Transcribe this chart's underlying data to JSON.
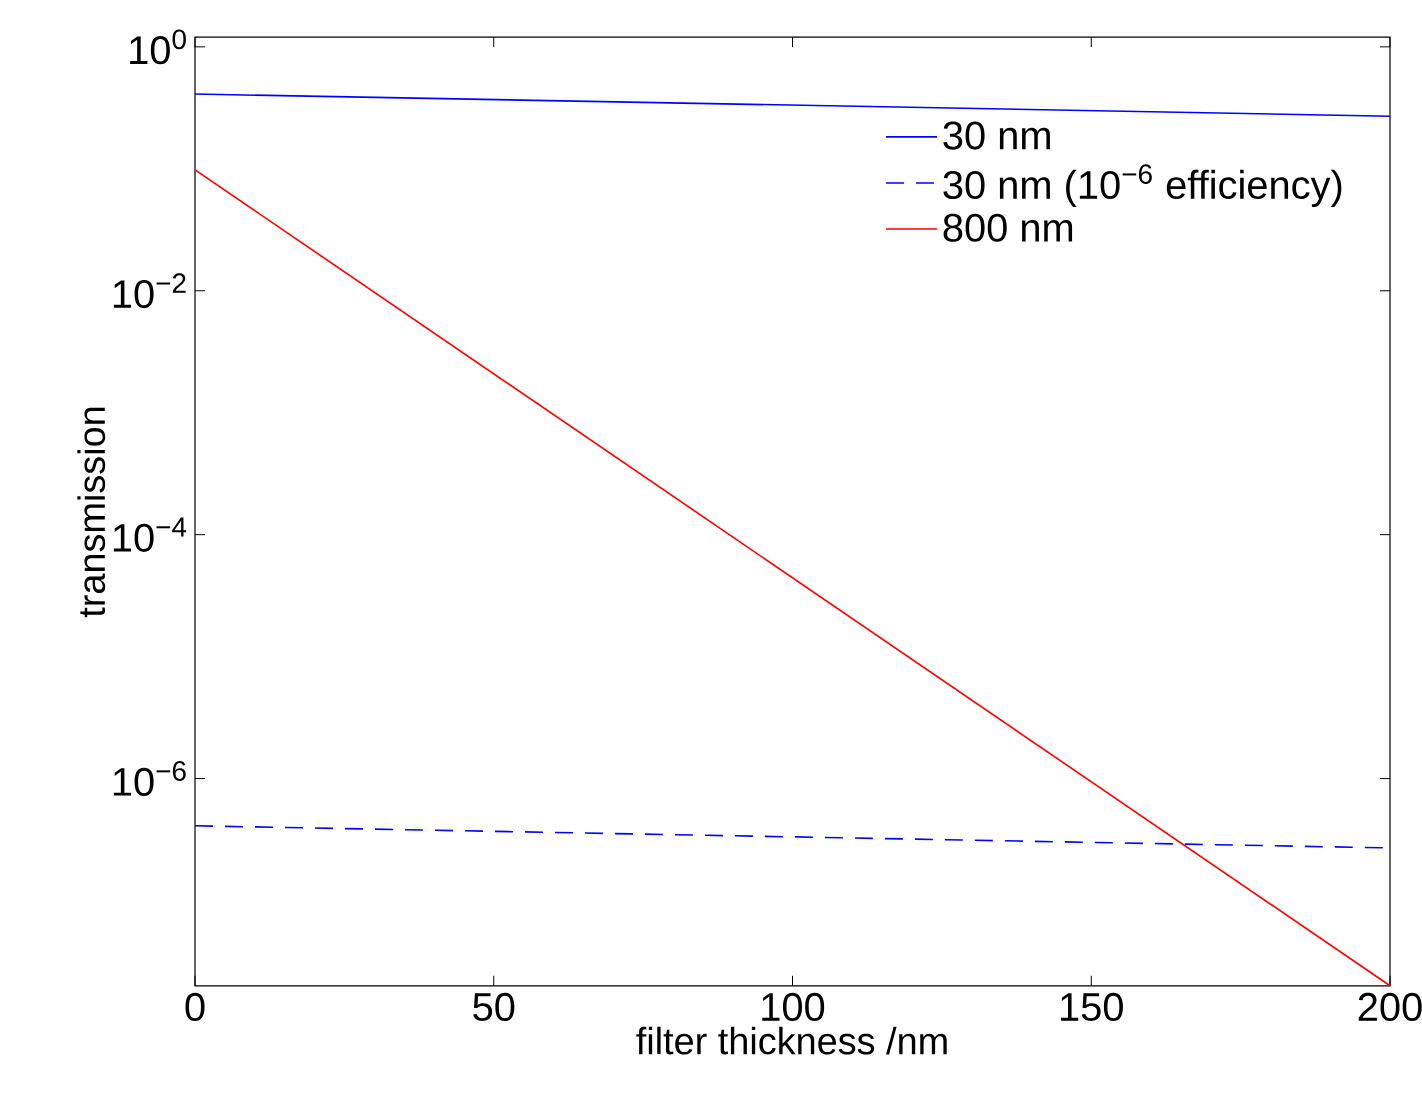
{
  "chart_data": {
    "type": "line",
    "xlabel": "filter thickness /nm",
    "ylabel": "transmission",
    "log": "y",
    "xlim": [
      0,
      200
    ],
    "ylim": [
      2e-08,
      1.2
    ],
    "xticks": [
      0,
      50,
      100,
      150,
      200
    ],
    "yticks": [
      {
        "value": 1,
        "label": "10$^{0}$"
      },
      {
        "value": 0.01,
        "label": "10$^{−2}$"
      },
      {
        "value": 0.0001,
        "label": "10$^{−4}$"
      },
      {
        "value": 1e-06,
        "label": "10$^{−6}$"
      }
    ],
    "legend": "top right",
    "grid": false,
    "marker": "none",
    "x": [
      0,
      200
    ],
    "series": [
      {
        "name": "30 nm",
        "color": "#0000ff",
        "line_style": "solid",
        "values": [
          0.41,
          0.27
        ]
      },
      {
        "name": "30 nm (10$^{−6}$ efficiency)",
        "color": "#0000ff",
        "line_style": "dashed",
        "values": [
          4.1e-07,
          2.7e-07
        ]
      },
      {
        "name": "800 nm",
        "color": "#ff0000",
        "line_style": "solid",
        "values": [
          0.098,
          2e-08
        ]
      }
    ]
  }
}
